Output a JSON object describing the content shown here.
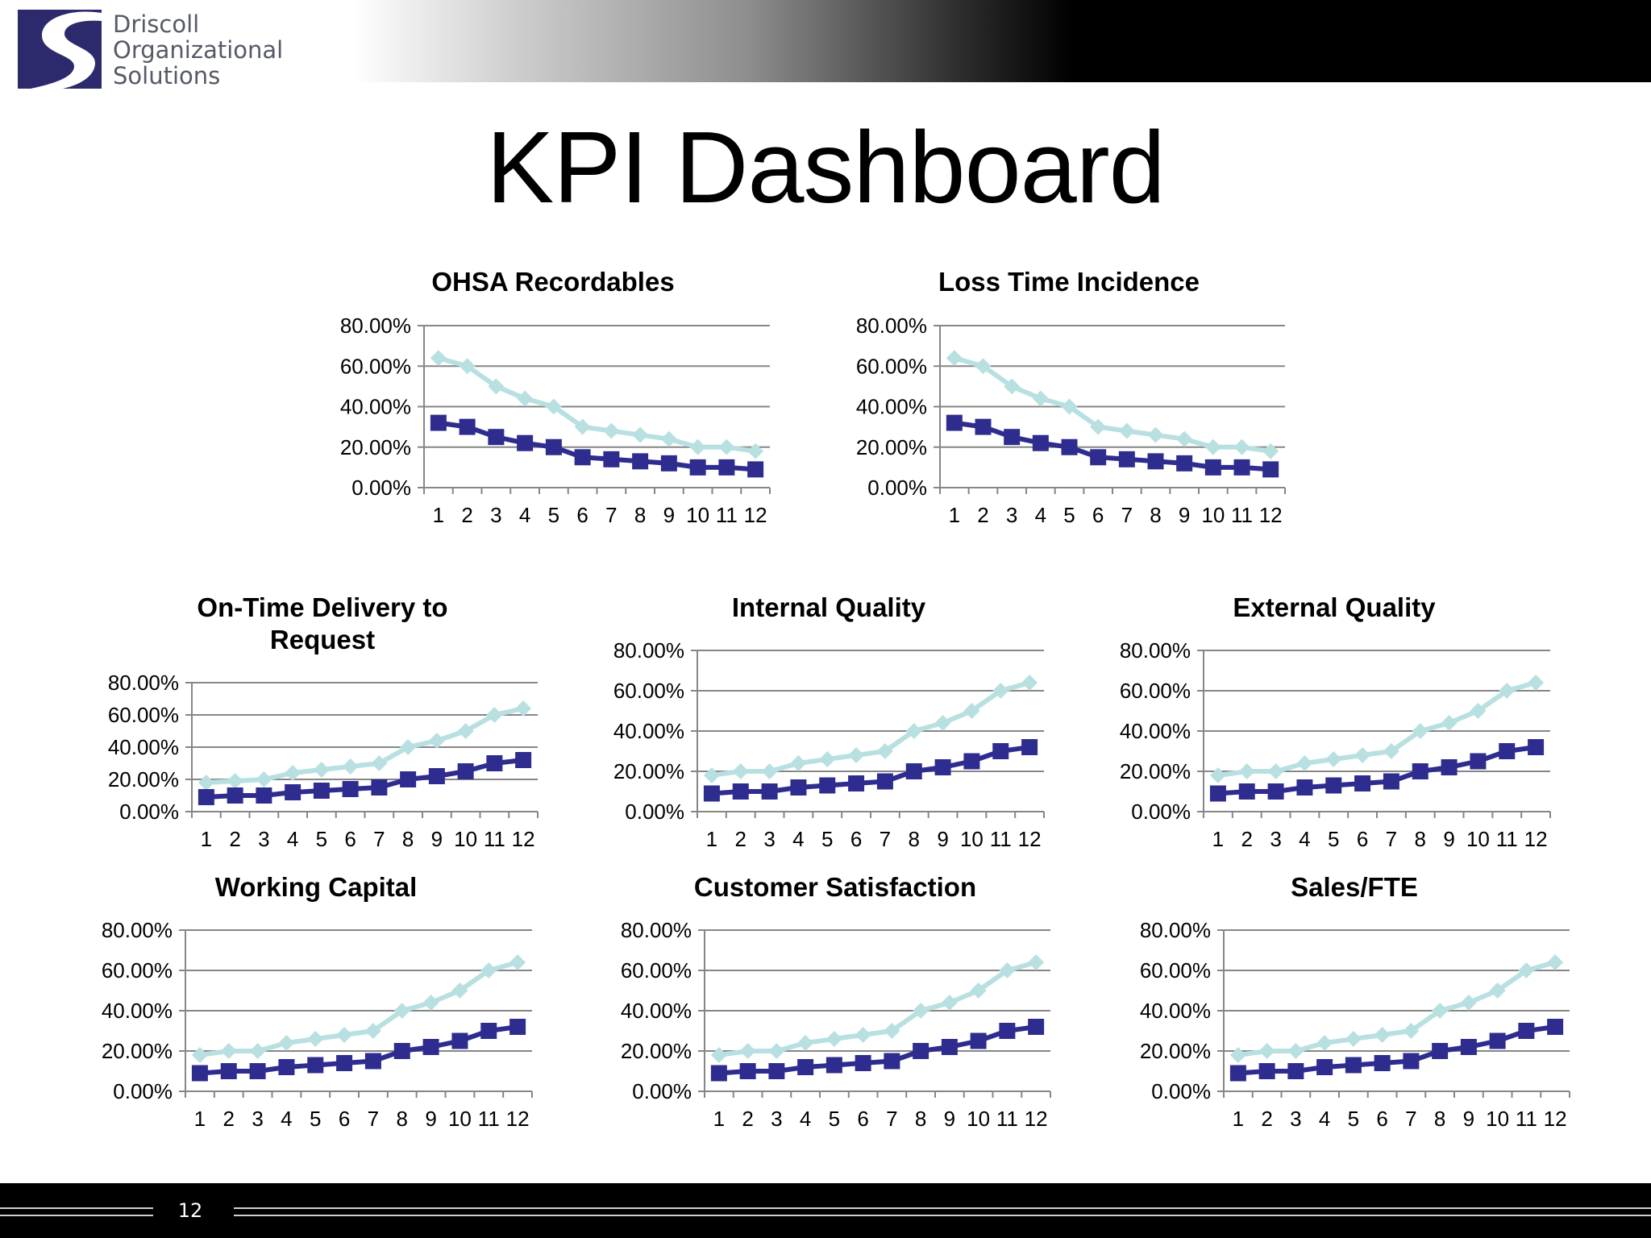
{
  "header": {
    "logo_lines": [
      "Driscoll",
      "Organizational",
      "Solutions"
    ],
    "logo_icon": "driscoll-s-logo-icon"
  },
  "title": "KPI Dashboard",
  "footer": {
    "page_number": "12"
  },
  "colors": {
    "series_light": "#b9e0e0",
    "series_dark": "#2e2d8f",
    "grid": "#868686"
  },
  "chart_data": [
    {
      "type": "line",
      "title_lines": [
        "OHSA Recordables"
      ],
      "categories": [
        "1",
        "2",
        "3",
        "4",
        "5",
        "6",
        "7",
        "8",
        "9",
        "10",
        "11",
        "12"
      ],
      "yticks": [
        "0.00%",
        "20.00%",
        "40.00%",
        "60.00%",
        "80.00%"
      ],
      "ylim": [
        0,
        80
      ],
      "grid": true,
      "series": [
        {
          "marker": "diamond",
          "color": "#b9e0e0",
          "values": [
            64,
            60,
            50,
            44,
            40,
            30,
            28,
            26,
            24,
            20,
            20,
            18
          ]
        },
        {
          "marker": "square",
          "color": "#2e2d8f",
          "values": [
            32,
            30,
            25,
            22,
            20,
            15,
            14,
            13,
            12,
            10,
            10,
            9
          ]
        }
      ]
    },
    {
      "type": "line",
      "title_lines": [
        "Loss Time Incidence"
      ],
      "categories": [
        "1",
        "2",
        "3",
        "4",
        "5",
        "6",
        "7",
        "8",
        "9",
        "10",
        "11",
        "12"
      ],
      "yticks": [
        "0.00%",
        "20.00%",
        "40.00%",
        "60.00%",
        "80.00%"
      ],
      "ylim": [
        0,
        80
      ],
      "grid": true,
      "series": [
        {
          "marker": "diamond",
          "color": "#b9e0e0",
          "values": [
            64,
            60,
            50,
            44,
            40,
            30,
            28,
            26,
            24,
            20,
            20,
            18
          ]
        },
        {
          "marker": "square",
          "color": "#2e2d8f",
          "values": [
            32,
            30,
            25,
            22,
            20,
            15,
            14,
            13,
            12,
            10,
            10,
            9
          ]
        }
      ]
    },
    {
      "type": "line",
      "title_lines": [
        "On-Time Delivery to",
        "Request"
      ],
      "categories": [
        "1",
        "2",
        "3",
        "4",
        "5",
        "6",
        "7",
        "8",
        "9",
        "10",
        "11",
        "12"
      ],
      "yticks": [
        "0.00%",
        "20.00%",
        "40.00%",
        "60.00%",
        "80.00%"
      ],
      "ylim": [
        0,
        80
      ],
      "grid": true,
      "series": [
        {
          "marker": "diamond",
          "color": "#b9e0e0",
          "values": [
            18,
            19,
            20,
            24,
            26,
            28,
            30,
            40,
            44,
            50,
            60,
            64
          ]
        },
        {
          "marker": "square",
          "color": "#2e2d8f",
          "values": [
            9,
            10,
            10,
            12,
            13,
            14,
            15,
            20,
            22,
            25,
            30,
            32
          ]
        }
      ]
    },
    {
      "type": "line",
      "title_lines": [
        "Internal Quality"
      ],
      "categories": [
        "1",
        "2",
        "3",
        "4",
        "5",
        "6",
        "7",
        "8",
        "9",
        "10",
        "11",
        "12"
      ],
      "yticks": [
        "0.00%",
        "20.00%",
        "40.00%",
        "60.00%",
        "80.00%"
      ],
      "ylim": [
        0,
        80
      ],
      "grid": true,
      "series": [
        {
          "marker": "diamond",
          "color": "#b9e0e0",
          "values": [
            18,
            20,
            20,
            24,
            26,
            28,
            30,
            40,
            44,
            50,
            60,
            64
          ]
        },
        {
          "marker": "square",
          "color": "#2e2d8f",
          "values": [
            9,
            10,
            10,
            12,
            13,
            14,
            15,
            20,
            22,
            25,
            30,
            32
          ]
        }
      ]
    },
    {
      "type": "line",
      "title_lines": [
        "External Quality"
      ],
      "categories": [
        "1",
        "2",
        "3",
        "4",
        "5",
        "6",
        "7",
        "8",
        "9",
        "10",
        "11",
        "12"
      ],
      "yticks": [
        "0.00%",
        "20.00%",
        "40.00%",
        "60.00%",
        "80.00%"
      ],
      "ylim": [
        0,
        80
      ],
      "grid": true,
      "series": [
        {
          "marker": "diamond",
          "color": "#b9e0e0",
          "values": [
            18,
            20,
            20,
            24,
            26,
            28,
            30,
            40,
            44,
            50,
            60,
            64
          ]
        },
        {
          "marker": "square",
          "color": "#2e2d8f",
          "values": [
            9,
            10,
            10,
            12,
            13,
            14,
            15,
            20,
            22,
            25,
            30,
            32
          ]
        }
      ]
    },
    {
      "type": "line",
      "title_lines": [
        "Working Capital"
      ],
      "categories": [
        "1",
        "2",
        "3",
        "4",
        "5",
        "6",
        "7",
        "8",
        "9",
        "10",
        "11",
        "12"
      ],
      "yticks": [
        "0.00%",
        "20.00%",
        "40.00%",
        "60.00%",
        "80.00%"
      ],
      "ylim": [
        0,
        80
      ],
      "grid": true,
      "series": [
        {
          "marker": "diamond",
          "color": "#b9e0e0",
          "values": [
            18,
            20,
            20,
            24,
            26,
            28,
            30,
            40,
            44,
            50,
            60,
            64
          ]
        },
        {
          "marker": "square",
          "color": "#2e2d8f",
          "values": [
            9,
            10,
            10,
            12,
            13,
            14,
            15,
            20,
            22,
            25,
            30,
            32
          ]
        }
      ]
    },
    {
      "type": "line",
      "title_lines": [
        "Customer Satisfaction"
      ],
      "categories": [
        "1",
        "2",
        "3",
        "4",
        "5",
        "6",
        "7",
        "8",
        "9",
        "10",
        "11",
        "12"
      ],
      "yticks": [
        "0.00%",
        "20.00%",
        "40.00%",
        "60.00%",
        "80.00%"
      ],
      "ylim": [
        0,
        80
      ],
      "grid": true,
      "series": [
        {
          "marker": "diamond",
          "color": "#b9e0e0",
          "values": [
            18,
            20,
            20,
            24,
            26,
            28,
            30,
            40,
            44,
            50,
            60,
            64
          ]
        },
        {
          "marker": "square",
          "color": "#2e2d8f",
          "values": [
            9,
            10,
            10,
            12,
            13,
            14,
            15,
            20,
            22,
            25,
            30,
            32
          ]
        }
      ]
    },
    {
      "type": "line",
      "title_lines": [
        "Sales/FTE"
      ],
      "categories": [
        "1",
        "2",
        "3",
        "4",
        "5",
        "6",
        "7",
        "8",
        "9",
        "10",
        "11",
        "12"
      ],
      "yticks": [
        "0.00%",
        "20.00%",
        "40.00%",
        "60.00%",
        "80.00%"
      ],
      "ylim": [
        0,
        80
      ],
      "grid": true,
      "series": [
        {
          "marker": "diamond",
          "color": "#b9e0e0",
          "values": [
            18,
            20,
            20,
            24,
            26,
            28,
            30,
            40,
            44,
            50,
            60,
            64
          ]
        },
        {
          "marker": "square",
          "color": "#2e2d8f",
          "values": [
            9,
            10,
            10,
            12,
            13,
            14,
            15,
            20,
            22,
            25,
            30,
            32
          ]
        }
      ]
    }
  ]
}
